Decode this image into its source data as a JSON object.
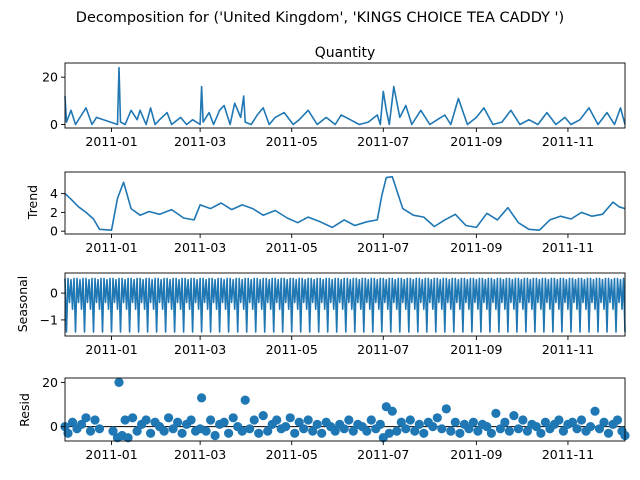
{
  "suptitle": "Decomposition for ('United Kingdom', 'KINGS CHOICE TEA CADDY ')",
  "chart_data": [
    {
      "type": "line",
      "title": "Quantity",
      "ylabel": "",
      "xlim": [
        "2010-12-01",
        "2011-12-09"
      ],
      "ylim": [
        -1.5,
        26
      ],
      "yticks": [
        0,
        20
      ],
      "yticklabels": [
        "0",
        "20"
      ],
      "xticks": [
        "2011-01",
        "2011-03",
        "2011-05",
        "2011-07",
        "2011-09",
        "2011-11"
      ],
      "x": [
        "2010-12-01",
        "2010-12-02",
        "2010-12-05",
        "2010-12-08",
        "2010-12-12",
        "2010-12-15",
        "2010-12-19",
        "2010-12-22",
        "2011-01-05",
        "2011-01-06",
        "2011-01-07",
        "2011-01-10",
        "2011-01-14",
        "2011-01-18",
        "2011-01-20",
        "2011-01-24",
        "2011-01-27",
        "2011-01-30",
        "2011-02-02",
        "2011-02-07",
        "2011-02-10",
        "2011-02-16",
        "2011-02-20",
        "2011-02-24",
        "2011-03-01",
        "2011-03-02",
        "2011-03-03",
        "2011-03-07",
        "2011-03-10",
        "2011-03-14",
        "2011-03-17",
        "2011-03-21",
        "2011-03-24",
        "2011-03-28",
        "2011-03-30",
        "2011-03-31",
        "2011-04-04",
        "2011-04-08",
        "2011-04-12",
        "2011-04-16",
        "2011-04-20",
        "2011-04-26",
        "2011-05-02",
        "2011-05-06",
        "2011-05-12",
        "2011-05-18",
        "2011-05-24",
        "2011-05-30",
        "2011-06-03",
        "2011-06-09",
        "2011-06-15",
        "2011-06-21",
        "2011-06-27",
        "2011-06-29",
        "2011-07-01",
        "2011-07-03",
        "2011-07-05",
        "2011-07-08",
        "2011-07-12",
        "2011-07-16",
        "2011-07-20",
        "2011-07-26",
        "2011-08-01",
        "2011-08-06",
        "2011-08-11",
        "2011-08-15",
        "2011-08-20",
        "2011-08-26",
        "2011-09-01",
        "2011-09-06",
        "2011-09-12",
        "2011-09-18",
        "2011-09-24",
        "2011-09-30",
        "2011-10-06",
        "2011-10-12",
        "2011-10-18",
        "2011-10-24",
        "2011-10-30",
        "2011-11-03",
        "2011-11-09",
        "2011-11-15",
        "2011-11-21",
        "2011-11-27",
        "2011-12-02",
        "2011-12-06",
        "2011-12-09"
      ],
      "values": [
        12,
        1,
        6,
        0,
        4,
        7,
        0,
        3,
        0,
        24,
        1,
        0,
        6,
        2,
        6,
        0,
        7,
        0,
        2,
        5,
        0,
        3,
        0,
        2,
        0,
        16,
        1,
        5,
        0,
        6,
        8,
        0,
        9,
        3,
        12,
        1,
        0,
        4,
        7,
        0,
        3,
        5,
        0,
        2,
        6,
        0,
        3,
        0,
        4,
        2,
        0,
        1,
        4,
        0,
        14,
        6,
        0,
        16,
        3,
        8,
        0,
        6,
        0,
        2,
        4,
        0,
        11,
        0,
        3,
        7,
        0,
        1,
        6,
        0,
        2,
        0,
        5,
        0,
        3,
        0,
        2,
        7,
        0,
        5,
        0,
        7,
        0
      ]
    },
    {
      "type": "line",
      "title": "",
      "ylabel": "Trend",
      "xlim": [
        "2010-12-01",
        "2011-12-09"
      ],
      "ylim": [
        -0.3,
        6.3
      ],
      "yticks": [
        0,
        2,
        4
      ],
      "yticklabels": [
        "0",
        "2",
        "4"
      ],
      "xticks": [
        "2011-01",
        "2011-03",
        "2011-05",
        "2011-07",
        "2011-09",
        "2011-11"
      ],
      "x": [
        "2010-12-01",
        "2010-12-05",
        "2010-12-10",
        "2010-12-15",
        "2010-12-20",
        "2010-12-24",
        "2011-01-01",
        "2011-01-05",
        "2011-01-09",
        "2011-01-14",
        "2011-01-20",
        "2011-01-26",
        "2011-02-02",
        "2011-02-10",
        "2011-02-18",
        "2011-02-25",
        "2011-03-01",
        "2011-03-08",
        "2011-03-15",
        "2011-03-22",
        "2011-03-29",
        "2011-04-05",
        "2011-04-12",
        "2011-04-20",
        "2011-04-28",
        "2011-05-05",
        "2011-05-12",
        "2011-05-20",
        "2011-05-28",
        "2011-06-05",
        "2011-06-12",
        "2011-06-20",
        "2011-06-27",
        "2011-06-30",
        "2011-07-03",
        "2011-07-07",
        "2011-07-14",
        "2011-07-21",
        "2011-07-28",
        "2011-08-04",
        "2011-08-11",
        "2011-08-18",
        "2011-08-25",
        "2011-09-01",
        "2011-09-08",
        "2011-09-15",
        "2011-09-22",
        "2011-09-29",
        "2011-10-06",
        "2011-10-13",
        "2011-10-20",
        "2011-10-27",
        "2011-11-03",
        "2011-11-10",
        "2011-11-17",
        "2011-11-24",
        "2011-12-01",
        "2011-12-05",
        "2011-12-09"
      ],
      "values": [
        4.0,
        3.4,
        2.6,
        2.0,
        1.3,
        0.2,
        0.1,
        3.5,
        5.2,
        2.4,
        1.7,
        2.1,
        1.8,
        2.3,
        1.4,
        1.2,
        2.8,
        2.4,
        3.0,
        2.3,
        2.8,
        2.4,
        1.7,
        2.2,
        1.4,
        0.9,
        1.5,
        1.0,
        0.4,
        1.2,
        0.6,
        1.0,
        1.2,
        3.8,
        5.7,
        5.8,
        2.4,
        1.7,
        1.5,
        0.5,
        1.2,
        1.8,
        0.6,
        0.4,
        1.9,
        1.2,
        2.5,
        0.9,
        0.2,
        0.1,
        1.2,
        1.6,
        1.3,
        2.0,
        1.6,
        1.8,
        3.1,
        2.6,
        2.4
      ]
    },
    {
      "type": "line",
      "title": "",
      "ylabel": "Seasonal",
      "xlim": [
        "2010-12-01",
        "2011-12-09"
      ],
      "ylim": [
        -1.6,
        0.75
      ],
      "yticks": [
        -1,
        0
      ],
      "yticklabels": [
        "−1",
        "0"
      ],
      "xticks": [
        "2011-01",
        "2011-03",
        "2011-05",
        "2011-07",
        "2011-09",
        "2011-11"
      ],
      "period_days": 6,
      "start": "2010-12-01",
      "pattern": [
        0.55,
        -1.45,
        0.55,
        -0.35,
        0.5,
        -0.6
      ]
    },
    {
      "type": "scatter",
      "title": "",
      "ylabel": "Resid",
      "xlim": [
        "2010-12-01",
        "2011-12-09"
      ],
      "ylim": [
        -6.5,
        22
      ],
      "yticks": [
        0,
        20
      ],
      "yticklabels": [
        "0",
        "20"
      ],
      "xticks": [
        "2011-01",
        "2011-03",
        "2011-05",
        "2011-07",
        "2011-09",
        "2011-11"
      ],
      "zero_line": true,
      "x": [
        "2010-12-01",
        "2010-12-03",
        "2010-12-06",
        "2010-12-09",
        "2010-12-12",
        "2010-12-15",
        "2010-12-18",
        "2010-12-21",
        "2010-12-24",
        "2011-01-02",
        "2011-01-05",
        "2011-01-06",
        "2011-01-08",
        "2011-01-10",
        "2011-01-12",
        "2011-01-15",
        "2011-01-18",
        "2011-01-21",
        "2011-01-24",
        "2011-01-27",
        "2011-01-30",
        "2011-02-02",
        "2011-02-05",
        "2011-02-08",
        "2011-02-11",
        "2011-02-14",
        "2011-02-17",
        "2011-02-20",
        "2011-02-23",
        "2011-02-26",
        "2011-03-01",
        "2011-03-02",
        "2011-03-05",
        "2011-03-08",
        "2011-03-11",
        "2011-03-14",
        "2011-03-17",
        "2011-03-20",
        "2011-03-23",
        "2011-03-26",
        "2011-03-29",
        "2011-03-31",
        "2011-04-03",
        "2011-04-06",
        "2011-04-09",
        "2011-04-12",
        "2011-04-15",
        "2011-04-18",
        "2011-04-21",
        "2011-04-24",
        "2011-04-27",
        "2011-04-30",
        "2011-05-03",
        "2011-05-06",
        "2011-05-09",
        "2011-05-12",
        "2011-05-15",
        "2011-05-18",
        "2011-05-21",
        "2011-05-24",
        "2011-05-27",
        "2011-05-30",
        "2011-06-02",
        "2011-06-05",
        "2011-06-08",
        "2011-06-11",
        "2011-06-14",
        "2011-06-17",
        "2011-06-20",
        "2011-06-23",
        "2011-06-26",
        "2011-06-29",
        "2011-07-01",
        "2011-07-03",
        "2011-07-05",
        "2011-07-07",
        "2011-07-10",
        "2011-07-13",
        "2011-07-16",
        "2011-07-19",
        "2011-07-22",
        "2011-07-25",
        "2011-07-28",
        "2011-07-31",
        "2011-08-03",
        "2011-08-06",
        "2011-08-09",
        "2011-08-12",
        "2011-08-15",
        "2011-08-18",
        "2011-08-21",
        "2011-08-24",
        "2011-08-27",
        "2011-08-30",
        "2011-09-02",
        "2011-09-05",
        "2011-09-08",
        "2011-09-11",
        "2011-09-14",
        "2011-09-17",
        "2011-09-20",
        "2011-09-23",
        "2011-09-26",
        "2011-09-29",
        "2011-10-02",
        "2011-10-05",
        "2011-10-08",
        "2011-10-11",
        "2011-10-14",
        "2011-10-17",
        "2011-10-20",
        "2011-10-23",
        "2011-10-26",
        "2011-10-29",
        "2011-11-01",
        "2011-11-04",
        "2011-11-07",
        "2011-11-10",
        "2011-11-13",
        "2011-11-16",
        "2011-11-19",
        "2011-11-22",
        "2011-11-25",
        "2011-11-28",
        "2011-12-01",
        "2011-12-04",
        "2011-12-07",
        "2011-12-09"
      ],
      "values": [
        0,
        -3,
        2,
        -1,
        1,
        4,
        -2,
        3,
        -1,
        -2,
        -5,
        20,
        -4,
        3,
        -5,
        4,
        -2,
        1,
        3,
        -3,
        2,
        0,
        -2,
        4,
        -1,
        2,
        -3,
        1,
        3,
        -2,
        -1,
        13,
        -2,
        3,
        -4,
        1,
        2,
        -3,
        4,
        0,
        -2,
        12,
        -1,
        3,
        -3,
        5,
        -2,
        1,
        3,
        -1,
        0,
        4,
        -3,
        2,
        -1,
        3,
        -2,
        1,
        -3,
        2,
        0,
        -2,
        1,
        -1,
        3,
        -2,
        1,
        0,
        -2,
        3,
        -1,
        1,
        -5,
        9,
        -3,
        7,
        -2,
        2,
        -1,
        3,
        -2,
        1,
        -3,
        2,
        0,
        4,
        -1,
        8,
        -2,
        2,
        -3,
        1,
        -1,
        2,
        -2,
        1,
        0,
        -3,
        6,
        -1,
        2,
        -2,
        5,
        -1,
        3,
        -2,
        1,
        0,
        -3,
        2,
        -1,
        1,
        3,
        -2,
        1,
        2,
        -1,
        3,
        -2,
        0,
        7,
        -1,
        2,
        -3,
        1,
        3,
        -2,
        -4
      ]
    }
  ]
}
